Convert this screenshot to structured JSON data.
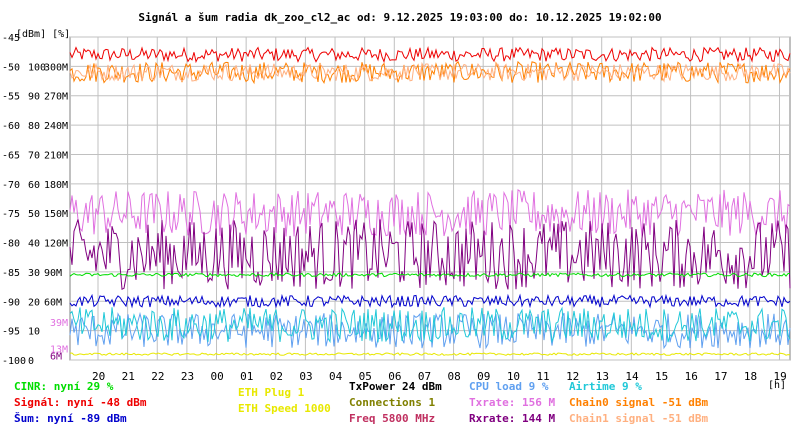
{
  "title": "Signál a šum radia dk_zoo_cl2_ac od: 9.12.2025 19:03:00 do: 10.12.2025 19:02:00",
  "axis_units_label": "[dBm] [%]",
  "chart_data": {
    "type": "line",
    "title": "Signál a šum radia dk_zoo_cl2_ac od: 9.12.2025 19:03:00 do: 10.12.2025 19:02:00",
    "xlabel": "[h]",
    "x_ticks": [
      "20",
      "21",
      "22",
      "23",
      "00",
      "01",
      "02",
      "03",
      "04",
      "05",
      "06",
      "07",
      "08",
      "09",
      "10",
      "11",
      "12",
      "13",
      "14",
      "15",
      "16",
      "17",
      "18",
      "19"
    ],
    "y_left_dbm": {
      "ticks": [
        -45,
        -50,
        -55,
        -60,
        -65,
        -70,
        -75,
        -80,
        -85,
        -90,
        -95,
        -100
      ],
      "ylim": [
        -100,
        -45
      ]
    },
    "y_percent": {
      "ticks": [
        100,
        90,
        80,
        70,
        60,
        50,
        40,
        30,
        20,
        10,
        0
      ],
      "ylim": [
        0,
        110
      ]
    },
    "y_rate": {
      "ticks": [
        "300M",
        "270M",
        "240M",
        "210M",
        "180M",
        "150M",
        "120M",
        "90M",
        "60M"
      ]
    },
    "extra_labels": [
      {
        "text": "39M",
        "color": "#e070e0",
        "dbm": -93.5
      },
      {
        "text": "13M",
        "color": "#e070e0",
        "dbm": -98
      },
      {
        "text": "6M",
        "color": "#800080",
        "dbm": -99.2
      }
    ],
    "grid": true,
    "series": [
      {
        "name": "Signál",
        "color": "#ee0000",
        "level_dbm": -48,
        "noise": 1.2
      },
      {
        "name": "Chain0 signal",
        "color": "#ff8000",
        "level_dbm": -51,
        "noise": 1.8
      },
      {
        "name": "Chain1 signal",
        "color": "#ffb080",
        "level_dbm": -51,
        "noise": 1.5
      },
      {
        "name": "Txrate",
        "color": "#e070e0",
        "level_dbm": -75,
        "noise": 4
      },
      {
        "name": "Rxrate",
        "color": "#800080",
        "level_dbm": -82,
        "noise": 6
      },
      {
        "name": "CINR",
        "color": "#00dd00",
        "level_dbm": -85.5,
        "noise": 0.3
      },
      {
        "name": "Šum",
        "color": "#0000cc",
        "level_dbm": -90,
        "noise": 1
      },
      {
        "name": "CPU load",
        "color": "#60a0f0",
        "level_dbm": -95,
        "noise": 3
      },
      {
        "name": "Airtime",
        "color": "#20c8d8",
        "level_dbm": -94,
        "noise": 3
      },
      {
        "name": "ETH Speed",
        "color": "#e8e800",
        "level_dbm": -99,
        "noise": 0.2
      }
    ]
  },
  "legend": {
    "cinr": "CINR: nyní 29 %",
    "signal": "Signál: nyní -48 dBm",
    "noise": "Šum: nyní -89 dBm",
    "eth_plug": "ETH Plug 1",
    "eth_speed": "ETH Speed 1000",
    "txpower": "TxPower 24 dBm",
    "connections": "Connections 1",
    "freq": "Freq 5800 MHz",
    "cpu": "CPU load 9 %",
    "txrate": "Txrate: 156 M",
    "rxrate": "Rxrate: 144 M",
    "airtime": "Airtime 9 %",
    "chain0": "Chain0 signal -51 dBm",
    "chain1": "Chain1 signal -51 dBm"
  },
  "colors": {
    "cinr": "#00dd00",
    "signal": "#ee0000",
    "noise": "#0000cc",
    "eth_plug": "#e8e800",
    "eth_speed": "#e8e800",
    "txpower": "#000000",
    "connections": "#808000",
    "freq": "#c03060",
    "cpu": "#60a0f0",
    "txrate": "#e070e0",
    "rxrate": "#800080",
    "airtime": "#20c8d8",
    "chain0": "#ff8000",
    "chain1": "#ffb080"
  }
}
